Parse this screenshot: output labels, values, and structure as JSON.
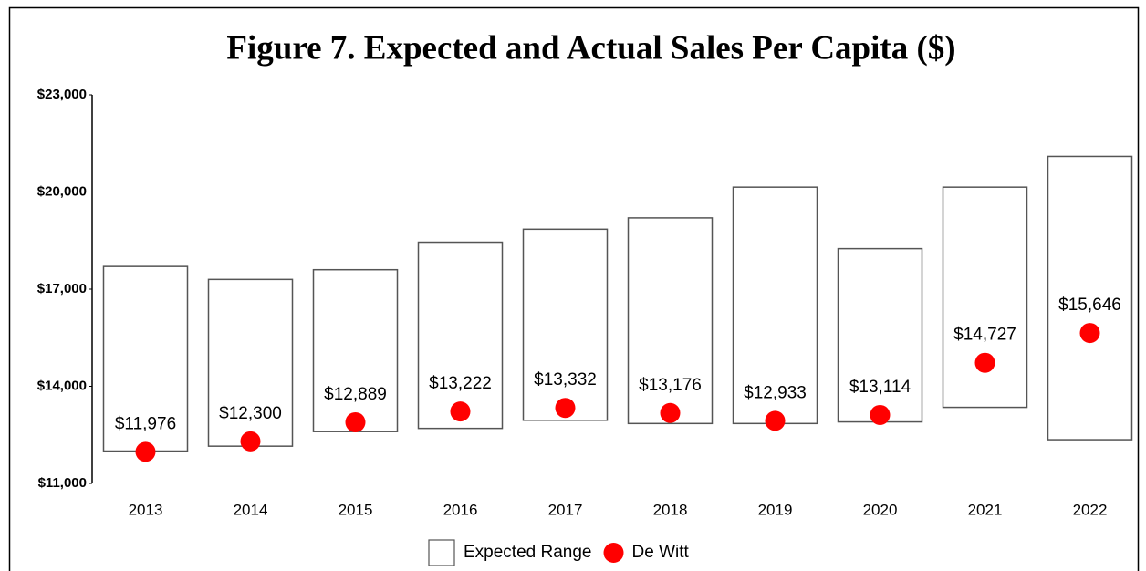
{
  "chart_data": {
    "type": "range-dot",
    "title": "Figure 7. Expected and Actual Sales Per Capita ($)",
    "categories": [
      "2013",
      "2014",
      "2015",
      "2016",
      "2017",
      "2018",
      "2019",
      "2020",
      "2021",
      "2022"
    ],
    "range": {
      "name": "Expected Range",
      "color": "#ffffff",
      "stroke": "#555555",
      "low": [
        12000,
        12150,
        12600,
        12700,
        12950,
        12850,
        12850,
        12900,
        13350,
        12350
      ],
      "high": [
        17700,
        17300,
        17600,
        18450,
        18850,
        19200,
        20150,
        18250,
        20150,
        21100
      ]
    },
    "series": [
      {
        "name": "De Witt",
        "color": "#ff0000",
        "values": [
          11976,
          12300,
          12889,
          13222,
          13332,
          13176,
          12933,
          13114,
          14727,
          15646
        ],
        "value_labels": [
          "$11,976",
          "$12,300",
          "$12,889",
          "$13,222",
          "$13,332",
          "$13,176",
          "$12,933",
          "$13,114",
          "$14,727",
          "$15,646"
        ]
      }
    ],
    "ylim": [
      11000,
      23000
    ],
    "yticks": [
      {
        "value": 11000,
        "label": "$11,000"
      },
      {
        "value": 14000,
        "label": "$14,000"
      },
      {
        "value": 17000,
        "label": "$17,000"
      },
      {
        "value": 20000,
        "label": "$20,000"
      },
      {
        "value": 23000,
        "label": "$23,000"
      }
    ],
    "legend": "bottom"
  }
}
